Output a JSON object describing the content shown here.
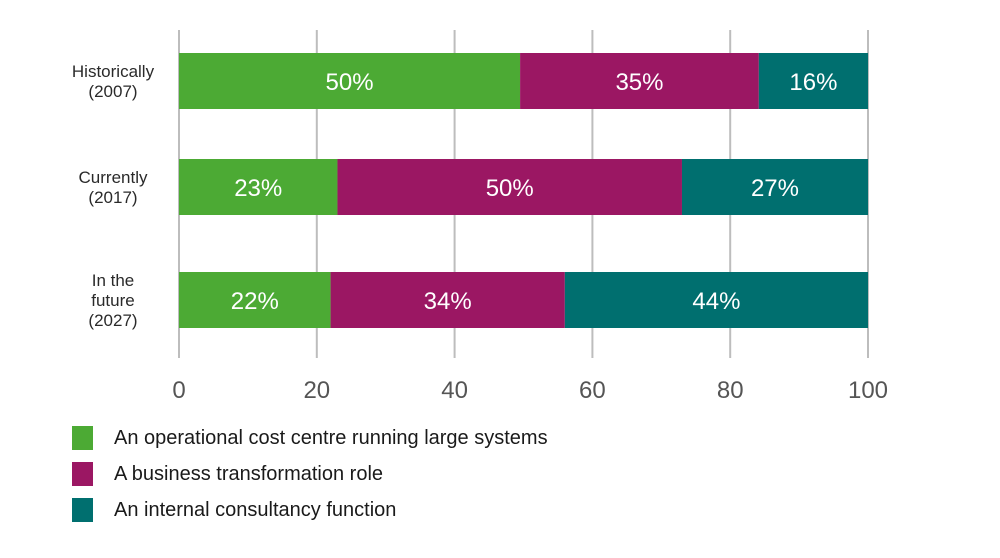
{
  "chart_data": {
    "type": "bar",
    "orientation": "horizontal",
    "stacked": true,
    "title": "",
    "xlabel": "",
    "ylabel": "",
    "xlim": [
      0,
      100
    ],
    "xticks": [
      0,
      20,
      40,
      60,
      80,
      100
    ],
    "grid": true,
    "legend_position": "bottom-left",
    "categories": [
      [
        "Historically",
        "(2007)"
      ],
      [
        "Currently",
        "(2017)"
      ],
      [
        "In the",
        "future",
        "(2027)"
      ]
    ],
    "category_names": [
      "Historically (2007)",
      "Currently (2017)",
      "In the future (2027)"
    ],
    "series": [
      {
        "name": "An operational cost centre running large systems",
        "color": "#4CAA34",
        "values": [
          50,
          23,
          22
        ],
        "labels": [
          "50%",
          "23%",
          "22%"
        ]
      },
      {
        "name": "A business transformation role",
        "color": "#9B1763",
        "values": [
          35,
          50,
          34
        ],
        "labels": [
          "35%",
          "50%",
          "34%"
        ]
      },
      {
        "name": "An internal consultancy function",
        "color": "#006F6F",
        "values": [
          16,
          27,
          44
        ],
        "labels": [
          "16%",
          "27%",
          "44%"
        ]
      }
    ]
  }
}
